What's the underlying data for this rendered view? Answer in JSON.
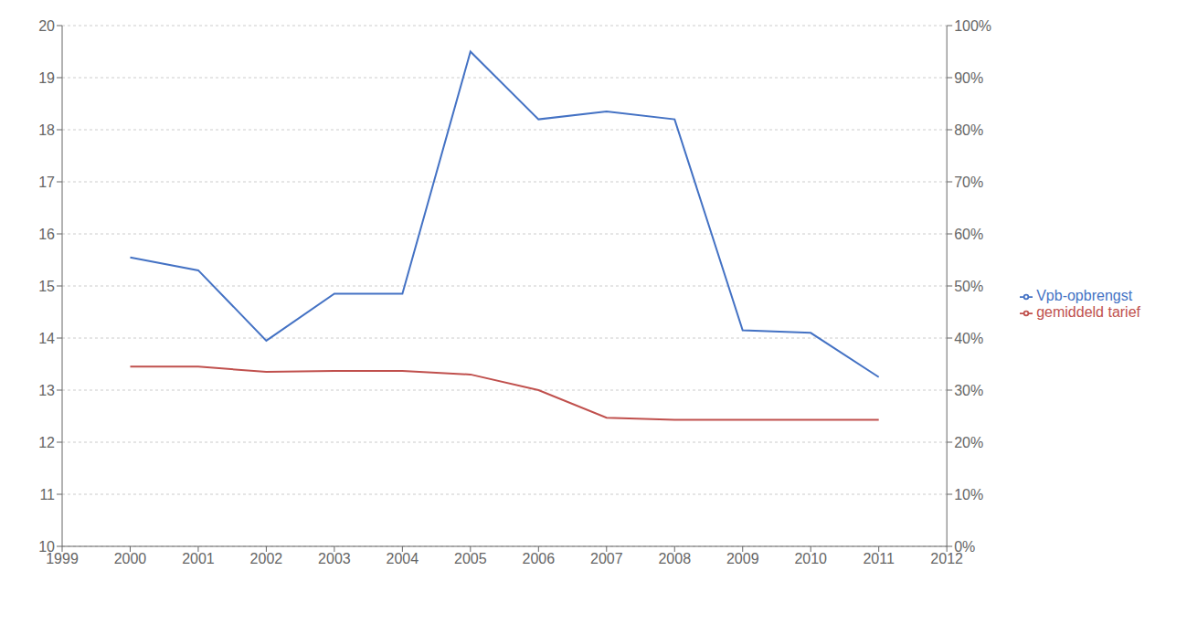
{
  "chart_data": {
    "type": "line",
    "x": [
      2000,
      2001,
      2002,
      2003,
      2004,
      2005,
      2006,
      2007,
      2008,
      2009,
      2010,
      2011
    ],
    "series": [
      {
        "name": "Vpb-opbrengst",
        "color": "#4472C4",
        "values": [
          15.55,
          15.3,
          13.95,
          14.85,
          14.85,
          19.5,
          18.2,
          18.35,
          18.2,
          14.15,
          14.1,
          13.25
        ]
      },
      {
        "name": "gemiddeld tarief",
        "color": "#C0504D",
        "values": [
          13.45,
          13.45,
          13.35,
          13.37,
          13.37,
          13.3,
          13.0,
          12.47,
          12.43,
          12.43,
          12.43,
          12.43
        ]
      }
    ],
    "xlim": [
      1999,
      2012
    ],
    "xticks": [
      1999,
      2000,
      2001,
      2002,
      2003,
      2004,
      2005,
      2006,
      2007,
      2008,
      2009,
      2010,
      2011,
      2012
    ],
    "ylim": [
      10,
      20
    ],
    "yticks": [
      10,
      11,
      12,
      13,
      14,
      15,
      16,
      17,
      18,
      19,
      20
    ],
    "y2lim": [
      0,
      100
    ],
    "y2ticks": [
      {
        "value": 0,
        "label": "0%"
      },
      {
        "value": 10,
        "label": "10%"
      },
      {
        "value": 20,
        "label": "20%"
      },
      {
        "value": 30,
        "label": "30%"
      },
      {
        "value": 40,
        "label": "40%"
      },
      {
        "value": 50,
        "label": "50%"
      },
      {
        "value": 60,
        "label": "60%"
      },
      {
        "value": 70,
        "label": "70%"
      },
      {
        "value": 80,
        "label": "80%"
      },
      {
        "value": 90,
        "label": "90%"
      },
      {
        "value": 100,
        "label": "100%"
      }
    ],
    "grid": true,
    "legend": "right"
  }
}
